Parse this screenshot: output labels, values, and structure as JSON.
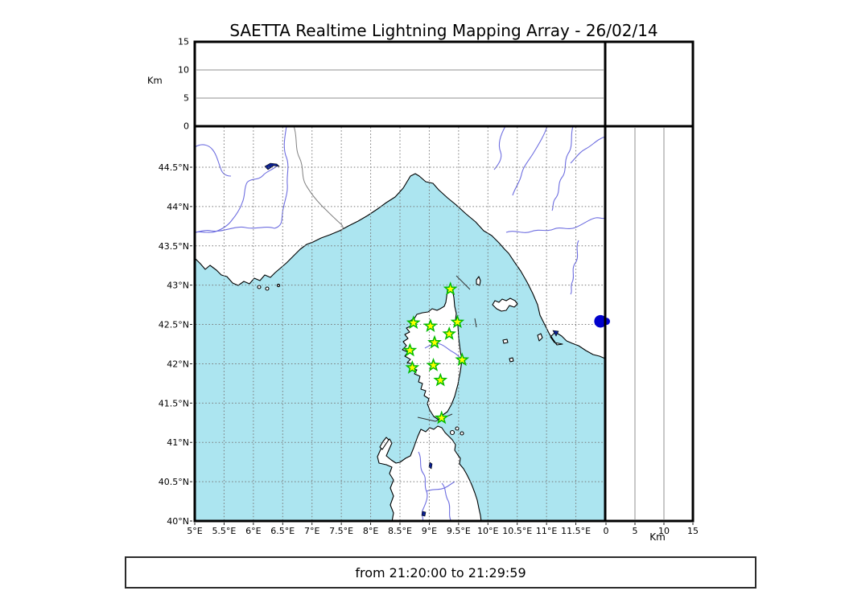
{
  "title": "SAETTA Realtime Lightning Mapping Array - 26/02/14",
  "footer": {
    "time_range": "from 21:20:00 to 21:29:59"
  },
  "axes": {
    "alt_left_label": "Km",
    "alt_bottom_label": "Km",
    "alt_ticks": [
      {
        "v": 0,
        "l": "0"
      },
      {
        "v": 5,
        "l": "5"
      },
      {
        "v": 10,
        "l": "10"
      },
      {
        "v": 15,
        "l": "15"
      }
    ],
    "lon_ticks": [
      {
        "v": 5,
        "l": "5°E"
      },
      {
        "v": 5.5,
        "l": "5.5°E"
      },
      {
        "v": 6,
        "l": "6°E"
      },
      {
        "v": 6.5,
        "l": "6.5°E"
      },
      {
        "v": 7,
        "l": "7°E"
      },
      {
        "v": 7.5,
        "l": "7.5°E"
      },
      {
        "v": 8,
        "l": "8°E"
      },
      {
        "v": 8.5,
        "l": "8.5°E"
      },
      {
        "v": 9,
        "l": "9°E"
      },
      {
        "v": 9.5,
        "l": "9.5°E"
      },
      {
        "v": 10,
        "l": "10°E"
      },
      {
        "v": 10.5,
        "l": "10.5°E"
      },
      {
        "v": 11,
        "l": "11°E"
      },
      {
        "v": 11.5,
        "l": "11.5°E"
      }
    ],
    "lat_ticks": [
      {
        "v": 40,
        "l": "40°N"
      },
      {
        "v": 40.5,
        "l": "40.5°N"
      },
      {
        "v": 41,
        "l": "41°N"
      },
      {
        "v": 41.5,
        "l": "41.5°N"
      },
      {
        "v": 42,
        "l": "42°N"
      },
      {
        "v": 42.5,
        "l": "42.5°N"
      },
      {
        "v": 43,
        "l": "43°N"
      },
      {
        "v": 43.5,
        "l": "43.5°N"
      },
      {
        "v": 44,
        "l": "44°N"
      },
      {
        "v": 44.5,
        "l": "44.5°N"
      }
    ]
  },
  "colors": {
    "sea": "#ace5f0",
    "land": "#ffffff",
    "coast": "#000000",
    "river": "#6e6ee0",
    "grid_dotted": "#777777",
    "grid_solid": "#909090",
    "country_border": "#808080",
    "lake": "#0a1f8f",
    "station_fill": "#ffff00",
    "station_stroke": "#00bb00",
    "source": "#0000cc",
    "frame": "#000000"
  },
  "chart_data": {
    "type": "scatter",
    "title": "SAETTA Realtime Lightning Mapping Array - 26/02/14",
    "time_window": "from 21:20:00 to 21:29:59",
    "layout": "lightning mapping array figure: altitude-vs-longitude panel on top, longitude-latitude map in center, altitude-vs-latitude panel on right, empty corner box top-right",
    "map_panel": {
      "xlim": [
        5,
        12
      ],
      "ylim": [
        40,
        45.02
      ],
      "x_unit": "°E",
      "y_unit": "°N",
      "grid": "dotted every 0.5°"
    },
    "alt_panels": {
      "unit": "Km",
      "lim": [
        0,
        15
      ],
      "ticks": [
        0,
        5,
        10,
        15
      ],
      "gridlines_km": [
        5,
        10
      ]
    },
    "stations": [
      {
        "lon": 9.36,
        "lat": 42.95
      },
      {
        "lon": 8.73,
        "lat": 42.52
      },
      {
        "lon": 9.02,
        "lat": 42.48
      },
      {
        "lon": 9.48,
        "lat": 42.53
      },
      {
        "lon": 9.34,
        "lat": 42.38
      },
      {
        "lon": 9.09,
        "lat": 42.27
      },
      {
        "lon": 8.67,
        "lat": 42.17
      },
      {
        "lon": 9.56,
        "lat": 42.05
      },
      {
        "lon": 8.71,
        "lat": 41.95
      },
      {
        "lon": 9.07,
        "lat": 41.98
      },
      {
        "lon": 9.19,
        "lat": 41.79
      },
      {
        "lon": 9.21,
        "lat": 41.31
      }
    ],
    "sources": [
      {
        "lon": 11.92,
        "lat": 42.54,
        "alt_km": 0
      }
    ]
  }
}
